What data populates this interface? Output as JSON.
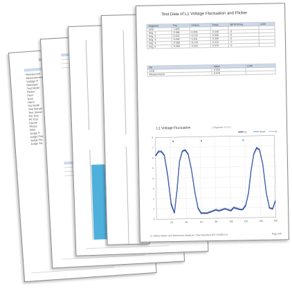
{
  "front": {
    "title": "Test Data of L1 Voltage Fluctuation and Flicker",
    "table1": {
      "headers": [
        "Segment",
        "Pst",
        "Vmean",
        "Vmax",
        "EPVI Proxy",
        "Limit"
      ],
      "rows": [
        [
          "Limit",
          "1.000",
          "",
          "",
          "",
          ""
        ],
        [
          "Seg. 1",
          "0.386",
          "0.205",
          "0.448",
          "0",
          ""
        ],
        [
          "Seg. 2",
          "0.262",
          "0.170",
          "0.358",
          "0",
          ""
        ],
        [
          "Seg. 3",
          "0.291",
          "0.201",
          "0.390",
          "0",
          ""
        ],
        [
          "Seg. 4",
          "0.308",
          "0.178",
          "0.412",
          "0",
          ""
        ],
        [
          "Seg. 5",
          "0.283",
          "0.215",
          "0.376",
          "0",
          ""
        ]
      ]
    },
    "table2": {
      "headers": [
        "Plt",
        "Value",
        "Limit"
      ],
      "rows": [
        [
          "Limit",
          "0.650",
          ""
        ],
        [
          "Measurement",
          "0.278",
          ""
        ]
      ]
    },
    "footer": "L1 Flicker Meter and Harmonics Analyzer / Test Standard IEC 61000-3-3",
    "page": "Page 6/6"
  },
  "chart_data": {
    "type": "line",
    "title": "L1 Voltage Fluctuation",
    "subtitle": "( Segment 1 D.V )",
    "legend": [
      "dv",
      "dmax",
      "dc"
    ],
    "legend_position": "top-right",
    "ylim": [
      0,
      8
    ],
    "yticks": [
      "0",
      "1",
      "2",
      "3",
      "4",
      "5",
      "6",
      "7",
      "8"
    ],
    "xlim": [
      0,
      160
    ],
    "xticks": [
      "20",
      "40",
      "60",
      "80",
      "100",
      "120",
      "140",
      "160"
    ],
    "grid": true,
    "x": [
      0,
      4,
      8,
      12,
      16,
      20,
      24,
      28,
      32,
      36,
      40,
      44,
      48,
      52,
      56,
      60,
      64,
      68,
      72,
      76,
      80,
      84,
      88,
      92,
      96,
      100,
      104,
      108,
      112,
      116,
      120,
      124,
      128,
      132,
      136,
      140,
      144,
      148,
      152,
      156,
      160
    ],
    "series": [
      {
        "name": "dv",
        "values": [
          6.2,
          6.6,
          6.6,
          6.2,
          4.2,
          1.4,
          0.6,
          2.8,
          5.6,
          6.6,
          6.7,
          6.3,
          4.8,
          2.6,
          1.0,
          0.5,
          0.5,
          0.5,
          0.6,
          0.7,
          0.8,
          0.7,
          0.8,
          0.9,
          0.8,
          0.7,
          1.0,
          0.9,
          0.8,
          0.8,
          1.2,
          2.4,
          4.6,
          6.2,
          6.8,
          6.6,
          5.2,
          2.4,
          0.9,
          0.8,
          1.6
        ]
      },
      {
        "name": "dmax",
        "values": [
          6.3,
          6.7,
          6.7,
          6.3,
          4.4,
          1.6,
          0.7,
          2.9,
          5.7,
          6.7,
          6.8,
          6.4,
          4.9,
          2.7,
          1.1,
          0.6,
          0.6,
          0.6,
          0.7,
          0.8,
          0.9,
          0.8,
          0.9,
          1.0,
          0.9,
          0.8,
          1.1,
          1.0,
          0.9,
          0.9,
          1.3,
          2.5,
          4.7,
          6.3,
          6.9,
          6.7,
          5.3,
          2.5,
          1.0,
          0.9,
          1.7
        ]
      }
    ]
  },
  "colors": {
    "series": [
      "#2a3a8a",
      "#5a8ad0",
      "#a8b8d8"
    ],
    "header": "#c9d9ee",
    "bar": "#4fb0dc"
  },
  "back_pages": {
    "p1_title": "Ge",
    "p1_items": [
      "ReferenceA",
      "Measurement",
      "Voltage R",
      "Standard",
      "Test Mode",
      "Flicker",
      "Fluct",
      "Eval",
      "Harm",
      "Pst Mode",
      "Test Range",
      "Test Status",
      "Pst Test",
      "Plt Test",
      "Param",
      "Phase",
      "Filter",
      "Judge P",
      "Judge Fluc",
      "Judge Flic",
      "Judge Tot"
    ]
  }
}
